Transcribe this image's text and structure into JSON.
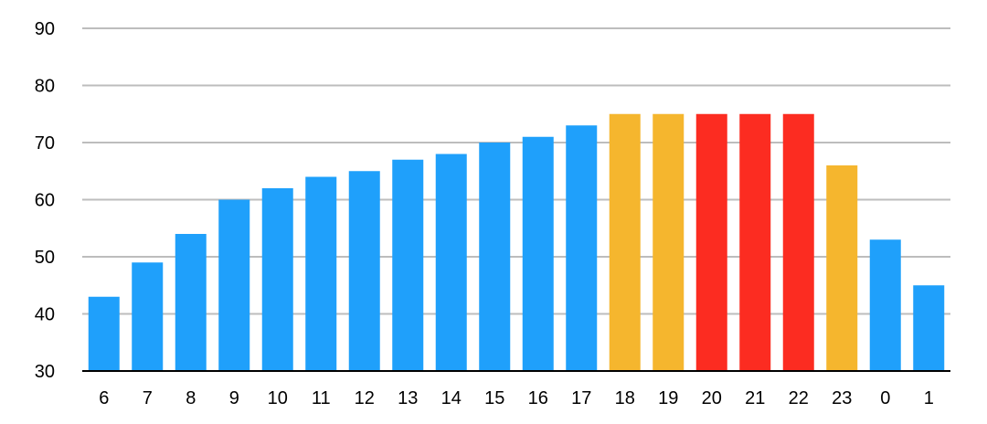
{
  "chart_data": {
    "type": "bar",
    "title": "",
    "xlabel": "",
    "ylabel": "",
    "ylim": [
      30,
      90
    ],
    "yticks": [
      "30",
      "40",
      "50",
      "60",
      "70",
      "80",
      "90"
    ],
    "grid": true,
    "categories": [
      "6",
      "7",
      "8",
      "9",
      "10",
      "11",
      "12",
      "13",
      "14",
      "15",
      "16",
      "17",
      "18",
      "19",
      "20",
      "21",
      "22",
      "23",
      "0",
      "1"
    ],
    "values": [
      43,
      49,
      54,
      60,
      62,
      64,
      65,
      67,
      68,
      70,
      71,
      73,
      75,
      75,
      75,
      75,
      75,
      66,
      53,
      45
    ],
    "colors": [
      "#1fa0fb",
      "#1fa0fb",
      "#1fa0fb",
      "#1fa0fb",
      "#1fa0fb",
      "#1fa0fb",
      "#1fa0fb",
      "#1fa0fb",
      "#1fa0fb",
      "#1fa0fb",
      "#1fa0fb",
      "#1fa0fb",
      "#f5b62e",
      "#f5b62e",
      "#fc2c21",
      "#fc2c21",
      "#fc2c21",
      "#f5b62e",
      "#1fa0fb",
      "#1fa0fb"
    ],
    "palette": {
      "blue": "#1fa0fb",
      "orange": "#f5b62e",
      "red": "#fc2c21"
    }
  }
}
